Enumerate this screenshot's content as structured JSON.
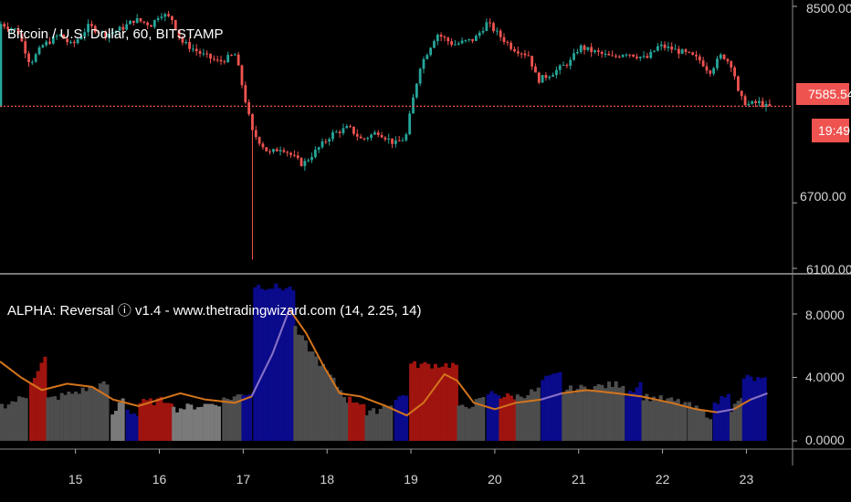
{
  "chart_data": [
    {
      "type": "candlestick",
      "title": "Bitcoin / U.S. Dollar, 60, BITSTAMP",
      "y_ticks": [
        "8500.00",
        "6700.00",
        "6100.00"
      ],
      "ylim": [
        6080,
        8540
      ],
      "last_price": 7585.54,
      "last_price_label": "7585.54",
      "countdown_label": "19:49",
      "x_days": [
        14.1,
        23.3
      ],
      "colors": {
        "up": "#26a69a",
        "down": "#ef5350",
        "price_line": "#ef5350"
      },
      "anchors": [
        {
          "x": 14.12,
          "y": 8350
        },
        {
          "x": 14.35,
          "y": 8280
        },
        {
          "x": 14.5,
          "y": 7980
        },
        {
          "x": 14.65,
          "y": 8140
        },
        {
          "x": 14.85,
          "y": 8240
        },
        {
          "x": 15.0,
          "y": 8140
        },
        {
          "x": 15.2,
          "y": 8320
        },
        {
          "x": 15.4,
          "y": 8240
        },
        {
          "x": 15.6,
          "y": 8300
        },
        {
          "x": 15.75,
          "y": 8380
        },
        {
          "x": 15.95,
          "y": 8330
        },
        {
          "x": 16.05,
          "y": 8440
        },
        {
          "x": 16.2,
          "y": 8380
        },
        {
          "x": 16.3,
          "y": 8180
        },
        {
          "x": 16.55,
          "y": 8060
        },
        {
          "x": 16.75,
          "y": 7990
        },
        {
          "x": 16.95,
          "y": 8060
        },
        {
          "x": 17.05,
          "y": 7700
        },
        {
          "x": 17.15,
          "y": 7350
        },
        {
          "x": 17.35,
          "y": 7150
        },
        {
          "x": 17.5,
          "y": 7210
        },
        {
          "x": 17.75,
          "y": 7050
        },
        {
          "x": 17.95,
          "y": 7210
        },
        {
          "x": 18.1,
          "y": 7330
        },
        {
          "x": 18.3,
          "y": 7390
        },
        {
          "x": 18.45,
          "y": 7280
        },
        {
          "x": 18.65,
          "y": 7350
        },
        {
          "x": 18.85,
          "y": 7240
        },
        {
          "x": 18.98,
          "y": 7300
        },
        {
          "x": 19.05,
          "y": 7590
        },
        {
          "x": 19.15,
          "y": 7950
        },
        {
          "x": 19.35,
          "y": 8250
        },
        {
          "x": 19.55,
          "y": 8150
        },
        {
          "x": 19.8,
          "y": 8200
        },
        {
          "x": 19.95,
          "y": 8350
        },
        {
          "x": 20.1,
          "y": 8230
        },
        {
          "x": 20.25,
          "y": 8120
        },
        {
          "x": 20.45,
          "y": 8050
        },
        {
          "x": 20.55,
          "y": 7820
        },
        {
          "x": 20.75,
          "y": 7900
        },
        {
          "x": 20.95,
          "y": 8000
        },
        {
          "x": 21.05,
          "y": 8130
        },
        {
          "x": 21.2,
          "y": 8090
        },
        {
          "x": 21.45,
          "y": 8030
        },
        {
          "x": 21.6,
          "y": 8080
        },
        {
          "x": 21.85,
          "y": 8020
        },
        {
          "x": 22.0,
          "y": 8140
        },
        {
          "x": 22.15,
          "y": 8110
        },
        {
          "x": 22.35,
          "y": 8060
        },
        {
          "x": 22.5,
          "y": 8000
        },
        {
          "x": 22.6,
          "y": 7900
        },
        {
          "x": 22.75,
          "y": 8060
        },
        {
          "x": 22.88,
          "y": 7950
        },
        {
          "x": 22.95,
          "y": 7680
        },
        {
          "x": 23.05,
          "y": 7600
        },
        {
          "x": 23.2,
          "y": 7620
        },
        {
          "x": 23.28,
          "y": 7580
        }
      ]
    },
    {
      "type": "bar",
      "title": "ALPHA: Reversal ⓘ v1.4 - www.thetradingwizard.com (14, 2.25, 14)",
      "y_ticks": [
        "8.0000",
        "4.0000",
        "0.0000"
      ],
      "ylim": [
        -0.8,
        10.5
      ],
      "colors": {
        "gray": "#4d4d4d",
        "light_gray": "#7a7a7a",
        "red": "#a0140f",
        "blue": "#0a0a8c",
        "signal_line": "#d4741c",
        "signal_line_blue": "#7e6fd0"
      },
      "segments": [
        {
          "x0": 14.1,
          "x1": 14.45,
          "v0": 2.2,
          "v1": 2.8,
          "color": "gray"
        },
        {
          "x0": 14.45,
          "x1": 14.65,
          "v0": 3.8,
          "v1": 5.2,
          "color": "red"
        },
        {
          "x0": 14.65,
          "x1": 15.42,
          "v0": 2.6,
          "v1": 3.6,
          "color": "gray"
        },
        {
          "x0": 15.42,
          "x1": 15.6,
          "v0": 1.5,
          "v1": 2.8,
          "color": "light_gray"
        },
        {
          "x0": 15.6,
          "x1": 15.75,
          "v0": 2.0,
          "v1": 1.6,
          "color": "blue"
        },
        {
          "x0": 15.75,
          "x1": 16.15,
          "v0": 2.4,
          "v1": 2.6,
          "color": "red"
        },
        {
          "x0": 16.15,
          "x1": 16.75,
          "v0": 2.0,
          "v1": 2.4,
          "color": "light_gray"
        },
        {
          "x0": 16.75,
          "x1": 16.98,
          "v0": 2.6,
          "v1": 2.9,
          "color": "gray"
        },
        {
          "x0": 16.98,
          "x1": 17.12,
          "v0": 3.0,
          "v1": 3.0,
          "color": "blue"
        },
        {
          "x0": 17.12,
          "x1": 17.6,
          "v0": 9.8,
          "v1": 9.6,
          "color": "blue"
        },
        {
          "x0": 17.6,
          "x1": 18.25,
          "v0": 7.0,
          "v1": 2.6,
          "color": "gray"
        },
        {
          "x0": 18.25,
          "x1": 18.45,
          "v0": 2.6,
          "v1": 2.4,
          "color": "red"
        },
        {
          "x0": 18.45,
          "x1": 18.8,
          "v0": 1.6,
          "v1": 2.4,
          "color": "gray"
        },
        {
          "x0": 18.8,
          "x1": 18.98,
          "v0": 2.6,
          "v1": 3.0,
          "color": "blue"
        },
        {
          "x0": 18.98,
          "x1": 19.55,
          "v0": 4.8,
          "v1": 4.8,
          "color": "red"
        },
        {
          "x0": 19.55,
          "x1": 19.9,
          "v0": 2.0,
          "v1": 2.6,
          "color": "gray"
        },
        {
          "x0": 19.9,
          "x1": 20.05,
          "v0": 3.0,
          "v1": 3.0,
          "color": "blue"
        },
        {
          "x0": 20.05,
          "x1": 20.25,
          "v0": 2.8,
          "v1": 2.8,
          "color": "red"
        },
        {
          "x0": 20.25,
          "x1": 20.55,
          "v0": 2.8,
          "v1": 3.2,
          "color": "gray"
        },
        {
          "x0": 20.55,
          "x1": 20.8,
          "v0": 3.8,
          "v1": 4.2,
          "color": "blue"
        },
        {
          "x0": 20.8,
          "x1": 21.55,
          "v0": 3.2,
          "v1": 3.6,
          "color": "gray"
        },
        {
          "x0": 21.55,
          "x1": 21.75,
          "v0": 3.0,
          "v1": 3.6,
          "color": "blue"
        },
        {
          "x0": 21.75,
          "x1": 22.3,
          "v0": 2.8,
          "v1": 2.4,
          "color": "gray"
        },
        {
          "x0": 22.3,
          "x1": 22.6,
          "v0": 2.2,
          "v1": 1.6,
          "color": "gray"
        },
        {
          "x0": 22.6,
          "x1": 22.8,
          "v0": 2.2,
          "v1": 3.2,
          "color": "blue"
        },
        {
          "x0": 22.8,
          "x1": 22.95,
          "v0": 2.0,
          "v1": 2.6,
          "color": "gray"
        },
        {
          "x0": 22.95,
          "x1": 23.25,
          "v0": 4.0,
          "v1": 3.8,
          "color": "blue"
        }
      ],
      "signal_line": [
        {
          "x": 14.1,
          "y": 5.0
        },
        {
          "x": 14.35,
          "y": 4.0
        },
        {
          "x": 14.6,
          "y": 3.2
        },
        {
          "x": 14.9,
          "y": 3.6
        },
        {
          "x": 15.2,
          "y": 3.4
        },
        {
          "x": 15.45,
          "y": 2.6
        },
        {
          "x": 15.75,
          "y": 2.2
        },
        {
          "x": 16.0,
          "y": 2.6
        },
        {
          "x": 16.25,
          "y": 3.0
        },
        {
          "x": 16.55,
          "y": 2.6
        },
        {
          "x": 16.9,
          "y": 2.4
        },
        {
          "x": 17.1,
          "y": 2.8
        },
        {
          "x": 17.35,
          "y": 5.5
        },
        {
          "x": 17.55,
          "y": 8.3
        },
        {
          "x": 17.75,
          "y": 6.8
        },
        {
          "x": 17.95,
          "y": 4.8
        },
        {
          "x": 18.15,
          "y": 3.0
        },
        {
          "x": 18.4,
          "y": 2.8
        },
        {
          "x": 18.7,
          "y": 2.2
        },
        {
          "x": 18.95,
          "y": 1.6
        },
        {
          "x": 19.15,
          "y": 2.4
        },
        {
          "x": 19.4,
          "y": 4.2
        },
        {
          "x": 19.55,
          "y": 3.8
        },
        {
          "x": 19.75,
          "y": 2.4
        },
        {
          "x": 20.0,
          "y": 2.0
        },
        {
          "x": 20.25,
          "y": 2.4
        },
        {
          "x": 20.55,
          "y": 2.6
        },
        {
          "x": 20.8,
          "y": 3.0
        },
        {
          "x": 21.1,
          "y": 3.2
        },
        {
          "x": 21.45,
          "y": 3.0
        },
        {
          "x": 21.75,
          "y": 2.8
        },
        {
          "x": 22.1,
          "y": 2.4
        },
        {
          "x": 22.4,
          "y": 2.0
        },
        {
          "x": 22.65,
          "y": 1.8
        },
        {
          "x": 22.85,
          "y": 2.0
        },
        {
          "x": 23.05,
          "y": 2.6
        },
        {
          "x": 23.25,
          "y": 3.0
        }
      ]
    }
  ],
  "x_axis": {
    "ticks": [
      15,
      16,
      17,
      18,
      19,
      20,
      21,
      22,
      23
    ],
    "labels": [
      "15",
      "16",
      "17",
      "18",
      "19",
      "20",
      "21",
      "22",
      "23"
    ]
  }
}
